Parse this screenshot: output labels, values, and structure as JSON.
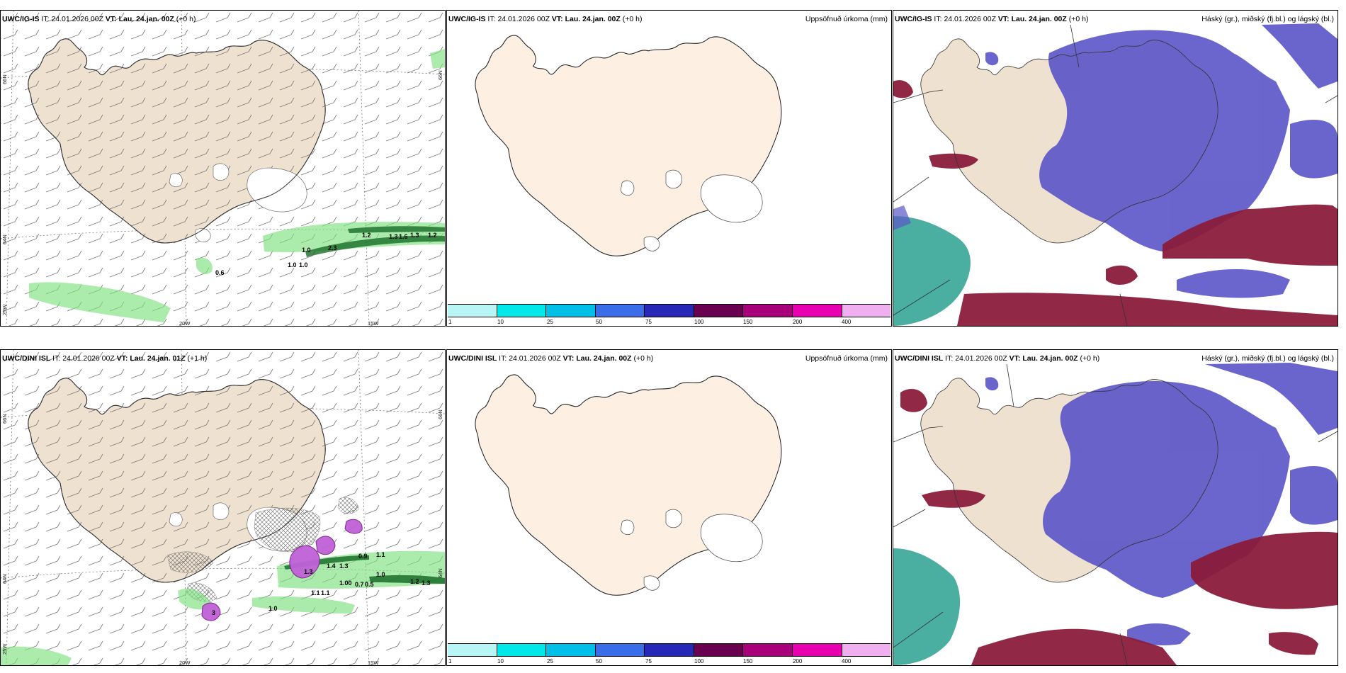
{
  "panels": {
    "a": {
      "model": "UWC/IG-IS",
      "it_label": "IT:",
      "it": "24.01.2026 00Z",
      "vt_label": "VT:",
      "vt": "Lau. 24.jan. 00Z",
      "lead": "(+0 h)"
    },
    "b": {
      "model": "UWC/IG-IS",
      "it_label": "IT:",
      "it": "24.01.2026 00Z",
      "vt_label": "VT:",
      "vt": "Lau. 24.jan. 00Z",
      "lead": "(+0 h)",
      "right_title": "Uppsöfnuð úrkoma (mm)"
    },
    "c": {
      "model": "UWC/IG-IS",
      "it_label": "IT:",
      "it": "24.01.2026 00Z",
      "vt_label": "VT:",
      "vt": "Lau. 24.jan. 00Z",
      "lead": "(+0 h)",
      "right_title": "Háský (gr.), miðský (fj.bl.) og lágský (bl.)"
    },
    "d": {
      "model": "UWC/DINI ISL",
      "it_label": "IT:",
      "it": "24.01.2026 00Z",
      "vt_label": "VT:",
      "vt": "Lau. 24.jan. 01Z",
      "lead": "(+1 h)"
    },
    "e": {
      "model": "UWC/DINI ISL",
      "it_label": "IT:",
      "it": "24.01.2026 00Z",
      "vt_label": "VT:",
      "vt": "Lau. 24.jan. 00Z",
      "lead": "(+0 h)",
      "right_title": "Uppsöfnuð úrkoma (mm)"
    },
    "f": {
      "model": "UWC/DINI ISL",
      "it_label": "IT:",
      "it": "24.01.2026 00Z",
      "vt_label": "VT:",
      "vt": "Lau. 24.jan. 00Z",
      "lead": "(+0 h)",
      "right_title": "Háský (gr.), miðský (fj.bl.) og lágský (bl.)"
    }
  },
  "axis_labels": {
    "lat66": "66N",
    "lat64": "64N",
    "lat66e": "66N",
    "lat64e": "64N",
    "lon25": "25W",
    "lon20": "20W",
    "lon15": "15W"
  },
  "colorbar": {
    "ticks": [
      "1",
      "10",
      "25",
      "50",
      "75",
      "100",
      "150",
      "200",
      "400"
    ],
    "colors": [
      "#b8f5f5",
      "#00e8e8",
      "#00c0e8",
      "#3a6ee8",
      "#2828b8",
      "#6a0050",
      "#a8007a",
      "#e800b0",
      "#f0b0f0"
    ]
  },
  "precip_values_a": [
    "0.6",
    "1.0",
    "1.0",
    "1.0",
    "2.3",
    "1.2",
    "1.3",
    "1.6",
    "1.3",
    "1.2"
  ],
  "precip_values_d": [
    "1.3",
    "1.4",
    "1.3",
    "0.9",
    "1.1",
    "1.0",
    "1.00",
    "0.7",
    "0.5",
    "1.2",
    "1.3",
    "1.1",
    "1.1",
    "1.0",
    "3"
  ],
  "colors": {
    "land": "#efe1d0",
    "land_light": "#fdf0e3",
    "high_cloud": "#8a1c3c",
    "mid_cloud": "#5a55c8",
    "low_cloud": "#2aa090",
    "precip": "#7ee07e"
  }
}
